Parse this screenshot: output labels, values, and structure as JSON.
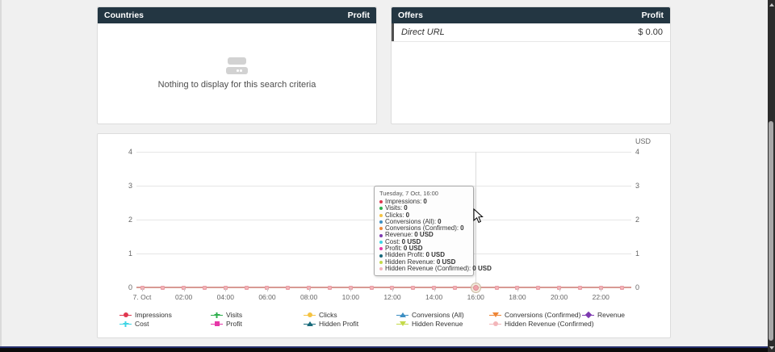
{
  "panels": {
    "countries": {
      "title": "Countries",
      "metric_label": "Profit",
      "empty_text": "Nothing to display for this search criteria"
    },
    "offers": {
      "title": "Offers",
      "metric_label": "Profit",
      "rows": [
        {
          "name": "Direct URL",
          "value": "$ 0.00"
        }
      ]
    }
  },
  "chart": {
    "unit_label": "USD",
    "y_ticks": [
      "4",
      "3",
      "2",
      "1",
      "0"
    ],
    "x_tick_labels": [
      "7. Oct",
      "02:00",
      "04:00",
      "06:00",
      "08:00",
      "10:00",
      "12:00",
      "14:00",
      "16:00",
      "18:00",
      "20:00",
      "22:00"
    ],
    "hover_hour_index": 16,
    "line_color": "#d89a94",
    "marker_color": "#f4b3b7",
    "tooltip": {
      "title": "Tuesday, 7 Oct, 16:00",
      "rows": [
        {
          "label": "Impressions",
          "value": "0",
          "color": "#e0374f"
        },
        {
          "label": "Visits",
          "value": "0",
          "color": "#2eaf4d"
        },
        {
          "label": "Clicks",
          "value": "0",
          "color": "#f5c342"
        },
        {
          "label": "Conversions (All)",
          "value": "0",
          "color": "#3d8fc3"
        },
        {
          "label": "Conversions (Confirmed)",
          "value": "0",
          "color": "#ee8637"
        },
        {
          "label": "Revenue",
          "value": "0 USD",
          "color": "#7d3ab0"
        },
        {
          "label": "Cost",
          "value": "0 USD",
          "color": "#3fd5e5"
        },
        {
          "label": "Profit",
          "value": "0 USD",
          "color": "#e637a8"
        },
        {
          "label": "Hidden Profit",
          "value": "0 USD",
          "color": "#17697a"
        },
        {
          "label": "Hidden Revenue",
          "value": "0 USD",
          "color": "#c4da49"
        },
        {
          "label": "Hidden Revenue (Confirmed)",
          "value": "0 USD",
          "color": "#f3b6ba"
        }
      ]
    },
    "legend": [
      {
        "label": "Impressions",
        "color": "#e0374f",
        "shape": "circle"
      },
      {
        "label": "Visits",
        "color": "#2eaf4d",
        "shape": "plus"
      },
      {
        "label": "Clicks",
        "color": "#f5c342",
        "shape": "circle"
      },
      {
        "label": "Conversions (All)",
        "color": "#3d8fc3",
        "shape": "triangle-up"
      },
      {
        "label": "Conversions (Confirmed)",
        "color": "#ee8637",
        "shape": "triangle-down"
      },
      {
        "label": "Revenue",
        "color": "#7d3ab0",
        "shape": "diamond"
      },
      {
        "label": "Cost",
        "color": "#3fd5e5",
        "shape": "plus"
      },
      {
        "label": "Profit",
        "color": "#e637a8",
        "shape": "square"
      },
      {
        "label": "Hidden Profit",
        "color": "#17697a",
        "shape": "triangle-up"
      },
      {
        "label": "Hidden Revenue",
        "color": "#c4da49",
        "shape": "triangle-down"
      },
      {
        "label": "Hidden Revenue (Confirmed)",
        "color": "#f3b6ba",
        "shape": "circle"
      }
    ]
  },
  "chart_data": {
    "type": "line",
    "title": "",
    "xlabel": "",
    "ylabel": "USD",
    "ylim": [
      0,
      4
    ],
    "y_ticks": [
      0,
      1,
      2,
      3,
      4
    ],
    "date": "7. Oct",
    "x": [
      "00:00",
      "01:00",
      "02:00",
      "03:00",
      "04:00",
      "05:00",
      "06:00",
      "07:00",
      "08:00",
      "09:00",
      "10:00",
      "11:00",
      "12:00",
      "13:00",
      "14:00",
      "15:00",
      "16:00",
      "17:00",
      "18:00",
      "19:00",
      "20:00",
      "21:00",
      "22:00",
      "23:00"
    ],
    "grid": true,
    "legend_position": "bottom",
    "series": [
      {
        "name": "Impressions",
        "color": "#e0374f",
        "values": [
          0,
          0,
          0,
          0,
          0,
          0,
          0,
          0,
          0,
          0,
          0,
          0,
          0,
          0,
          0,
          0,
          0,
          0,
          0,
          0,
          0,
          0,
          0,
          0
        ]
      },
      {
        "name": "Visits",
        "color": "#2eaf4d",
        "values": [
          0,
          0,
          0,
          0,
          0,
          0,
          0,
          0,
          0,
          0,
          0,
          0,
          0,
          0,
          0,
          0,
          0,
          0,
          0,
          0,
          0,
          0,
          0,
          0
        ]
      },
      {
        "name": "Clicks",
        "color": "#f5c342",
        "values": [
          0,
          0,
          0,
          0,
          0,
          0,
          0,
          0,
          0,
          0,
          0,
          0,
          0,
          0,
          0,
          0,
          0,
          0,
          0,
          0,
          0,
          0,
          0,
          0
        ]
      },
      {
        "name": "Conversions (All)",
        "color": "#3d8fc3",
        "values": [
          0,
          0,
          0,
          0,
          0,
          0,
          0,
          0,
          0,
          0,
          0,
          0,
          0,
          0,
          0,
          0,
          0,
          0,
          0,
          0,
          0,
          0,
          0,
          0
        ]
      },
      {
        "name": "Conversions (Confirmed)",
        "color": "#ee8637",
        "values": [
          0,
          0,
          0,
          0,
          0,
          0,
          0,
          0,
          0,
          0,
          0,
          0,
          0,
          0,
          0,
          0,
          0,
          0,
          0,
          0,
          0,
          0,
          0,
          0
        ]
      },
      {
        "name": "Revenue",
        "color": "#7d3ab0",
        "values": [
          0,
          0,
          0,
          0,
          0,
          0,
          0,
          0,
          0,
          0,
          0,
          0,
          0,
          0,
          0,
          0,
          0,
          0,
          0,
          0,
          0,
          0,
          0,
          0
        ]
      },
      {
        "name": "Cost",
        "color": "#3fd5e5",
        "values": [
          0,
          0,
          0,
          0,
          0,
          0,
          0,
          0,
          0,
          0,
          0,
          0,
          0,
          0,
          0,
          0,
          0,
          0,
          0,
          0,
          0,
          0,
          0,
          0
        ]
      },
      {
        "name": "Profit",
        "color": "#e637a8",
        "values": [
          0,
          0,
          0,
          0,
          0,
          0,
          0,
          0,
          0,
          0,
          0,
          0,
          0,
          0,
          0,
          0,
          0,
          0,
          0,
          0,
          0,
          0,
          0,
          0
        ]
      },
      {
        "name": "Hidden Profit",
        "color": "#17697a",
        "values": [
          0,
          0,
          0,
          0,
          0,
          0,
          0,
          0,
          0,
          0,
          0,
          0,
          0,
          0,
          0,
          0,
          0,
          0,
          0,
          0,
          0,
          0,
          0,
          0
        ]
      },
      {
        "name": "Hidden Revenue",
        "color": "#c4da49",
        "values": [
          0,
          0,
          0,
          0,
          0,
          0,
          0,
          0,
          0,
          0,
          0,
          0,
          0,
          0,
          0,
          0,
          0,
          0,
          0,
          0,
          0,
          0,
          0,
          0
        ]
      },
      {
        "name": "Hidden Revenue (Confirmed)",
        "color": "#f3b6ba",
        "values": [
          0,
          0,
          0,
          0,
          0,
          0,
          0,
          0,
          0,
          0,
          0,
          0,
          0,
          0,
          0,
          0,
          0,
          0,
          0,
          0,
          0,
          0,
          0,
          0
        ]
      }
    ]
  }
}
